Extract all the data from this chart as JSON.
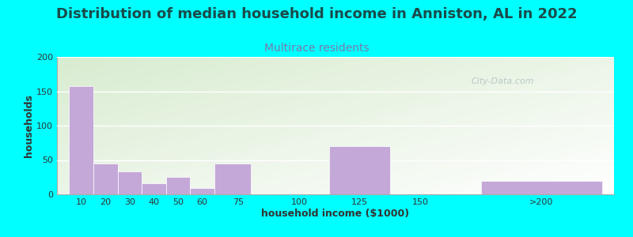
{
  "title": "Distribution of median household income in Anniston, AL in 2022",
  "subtitle": "Multirace residents",
  "xlabel": "household income ($1000)",
  "ylabel": "households",
  "background_color": "#00FFFF",
  "plot_bg_color_topleft": "#d8ecd0",
  "plot_bg_color_bottomright": "#ffffff",
  "bar_color": "#c4a8d8",
  "bar_edge_color": "#ffffff",
  "values": [
    158,
    45,
    33,
    16,
    25,
    9,
    45,
    0,
    70,
    0,
    20
  ],
  "bar_left_edges": [
    5,
    15,
    25,
    35,
    45,
    55,
    65,
    87.5,
    112.5,
    137.5,
    175
  ],
  "bar_widths": [
    10,
    10,
    10,
    10,
    10,
    10,
    15,
    25,
    25,
    25,
    50
  ],
  "ylim": [
    0,
    200
  ],
  "yticks": [
    0,
    50,
    100,
    150,
    200
  ],
  "xtick_positions": [
    10,
    20,
    30,
    40,
    50,
    60,
    75,
    100,
    125,
    150,
    200
  ],
  "xtick_labels": [
    "10",
    "20",
    "30",
    "40",
    "50",
    "60",
    "75",
    "100",
    "125",
    "150",
    ">200"
  ],
  "xlim": [
    0,
    230
  ],
  "title_fontsize": 13,
  "subtitle_fontsize": 10,
  "title_color": "#1a4a4a",
  "subtitle_color": "#7a7aaa",
  "axis_label_fontsize": 9,
  "tick_fontsize": 8,
  "watermark_text": "City-Data.com",
  "watermark_color": "#b0c0c0"
}
